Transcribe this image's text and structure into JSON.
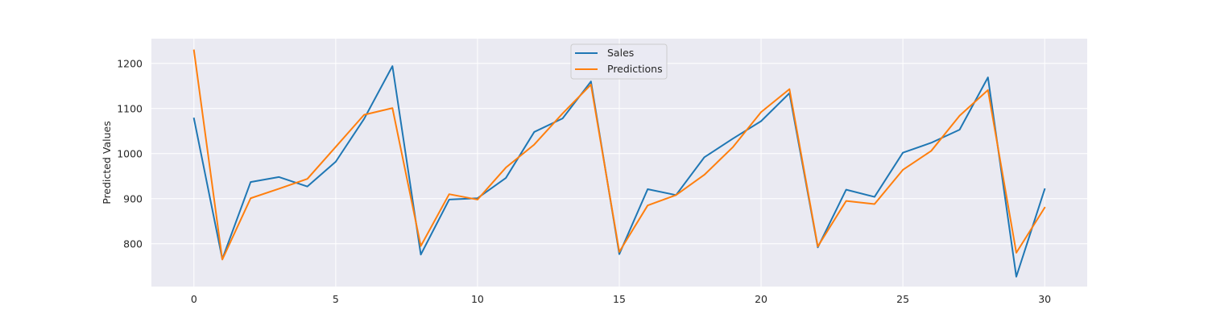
{
  "chart_data": {
    "type": "line",
    "title": "",
    "xlabel": "",
    "ylabel": "Predicted Values",
    "xlim": [
      -1.5,
      31.5
    ],
    "ylim": [
      705,
      1255
    ],
    "xticks": [
      0,
      5,
      10,
      15,
      20,
      25,
      30
    ],
    "yticks": [
      800,
      900,
      1000,
      1100,
      1200
    ],
    "grid": true,
    "legend_position": "top-center",
    "x": [
      0,
      1,
      2,
      3,
      4,
      5,
      6,
      7,
      8,
      9,
      10,
      11,
      12,
      13,
      14,
      15,
      16,
      17,
      18,
      19,
      20,
      21,
      22,
      23,
      24,
      25,
      26,
      27,
      28,
      29,
      30
    ],
    "series": [
      {
        "name": "Sales",
        "color": "#1f77b4",
        "values": [
          1078,
          766,
          937,
          948,
          927,
          982,
          1077,
          1194,
          776,
          898,
          901,
          946,
          1048,
          1078,
          1160,
          777,
          921,
          908,
          992,
          1033,
          1072,
          1134,
          792,
          920,
          904,
          1002,
          1024,
          1053,
          1169,
          727,
          921
        ]
      },
      {
        "name": "Predictions",
        "color": "#ff7f0e",
        "values": [
          1229,
          765,
          901,
          922,
          944,
          1015,
          1086,
          1101,
          795,
          910,
          898,
          969,
          1020,
          1089,
          1153,
          782,
          885,
          908,
          953,
          1014,
          1092,
          1143,
          794,
          895,
          888,
          964,
          1006,
          1084,
          1141,
          780,
          880
        ]
      }
    ]
  }
}
